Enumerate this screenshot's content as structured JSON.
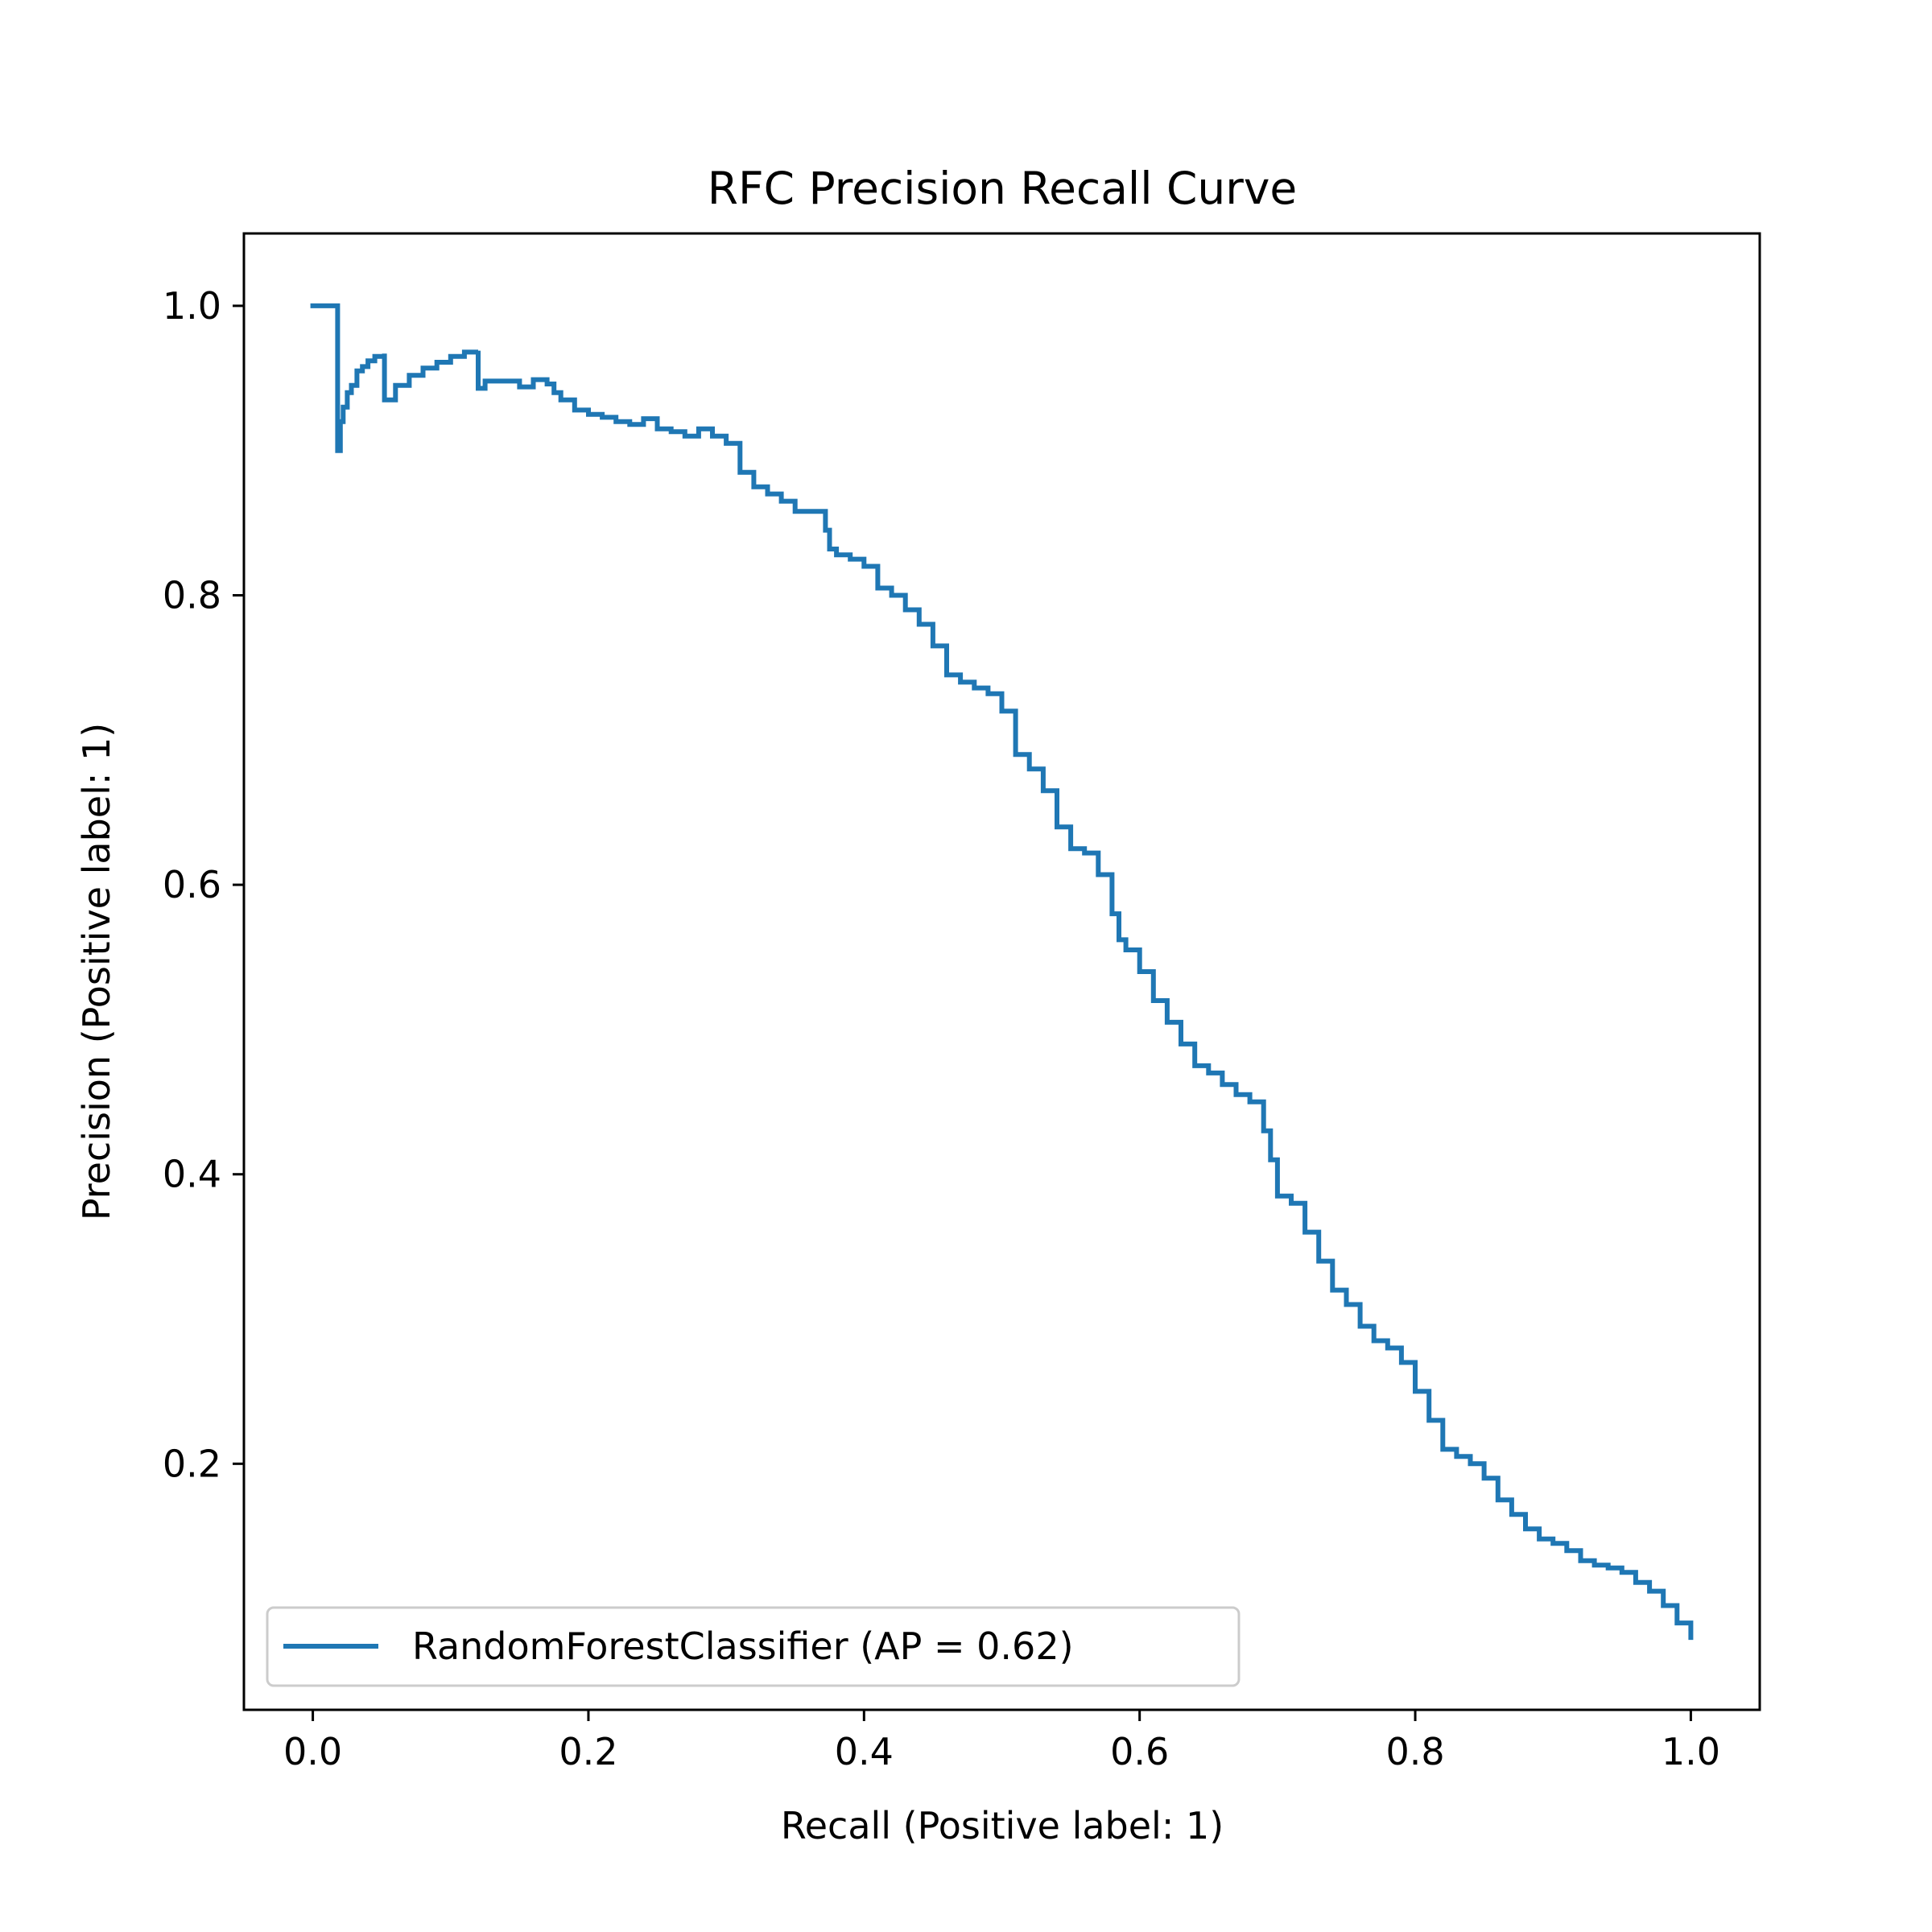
{
  "chart_data": {
    "type": "line",
    "title": "RFC Precision Recall Curve",
    "xlabel": "Recall (Positive label: 1)",
    "ylabel": "Precision (Positive label: 1)",
    "xlim": [
      -0.05,
      1.05
    ],
    "ylim": [
      0.03,
      1.05
    ],
    "xticks": [
      0.0,
      0.2,
      0.4,
      0.6,
      0.8,
      1.0
    ],
    "xtick_labels": [
      "0.0",
      "0.2",
      "0.4",
      "0.6",
      "0.8",
      "1.0"
    ],
    "yticks": [
      0.2,
      0.4,
      0.6,
      0.8,
      1.0
    ],
    "ytick_labels": [
      "0.2",
      "0.4",
      "0.6",
      "0.8",
      "1.0"
    ],
    "grid": false,
    "legend_position": "lower-left",
    "series": [
      {
        "name": "RandomForestClassifier (AP = 0.62)",
        "color": "#1f77b4",
        "drawstyle": "steps-post",
        "recall": [
          0.0,
          0.018,
          0.018,
          0.02,
          0.022,
          0.025,
          0.028,
          0.032,
          0.036,
          0.04,
          0.045,
          0.052,
          0.052,
          0.06,
          0.07,
          0.08,
          0.09,
          0.1,
          0.11,
          0.12,
          0.12,
          0.125,
          0.14,
          0.15,
          0.16,
          0.17,
          0.175,
          0.18,
          0.19,
          0.2,
          0.21,
          0.22,
          0.23,
          0.24,
          0.25,
          0.26,
          0.27,
          0.28,
          0.29,
          0.3,
          0.31,
          0.32,
          0.33,
          0.34,
          0.35,
          0.36,
          0.37,
          0.372,
          0.375,
          0.38,
          0.39,
          0.4,
          0.41,
          0.42,
          0.43,
          0.44,
          0.45,
          0.46,
          0.47,
          0.48,
          0.49,
          0.5,
          0.51,
          0.52,
          0.53,
          0.54,
          0.55,
          0.56,
          0.57,
          0.58,
          0.585,
          0.59,
          0.6,
          0.61,
          0.62,
          0.63,
          0.64,
          0.65,
          0.66,
          0.67,
          0.68,
          0.69,
          0.695,
          0.7,
          0.71,
          0.72,
          0.73,
          0.74,
          0.75,
          0.76,
          0.77,
          0.78,
          0.79,
          0.8,
          0.81,
          0.82,
          0.83,
          0.84,
          0.85,
          0.86,
          0.87,
          0.88,
          0.89,
          0.9,
          0.91,
          0.92,
          0.93,
          0.94,
          0.95,
          0.96,
          0.97,
          0.98,
          0.99,
          1.0
        ],
        "precision": [
          1.0,
          1.0,
          0.9,
          0.92,
          0.93,
          0.94,
          0.945,
          0.955,
          0.958,
          0.962,
          0.965,
          0.967,
          0.935,
          0.945,
          0.952,
          0.957,
          0.961,
          0.965,
          0.968,
          0.969,
          0.943,
          0.948,
          0.948,
          0.944,
          0.949,
          0.946,
          0.94,
          0.935,
          0.928,
          0.925,
          0.923,
          0.92,
          0.918,
          0.922,
          0.915,
          0.913,
          0.91,
          0.915,
          0.91,
          0.905,
          0.885,
          0.875,
          0.87,
          0.865,
          0.858,
          0.858,
          0.858,
          0.845,
          0.832,
          0.828,
          0.825,
          0.82,
          0.805,
          0.8,
          0.79,
          0.78,
          0.765,
          0.745,
          0.74,
          0.736,
          0.732,
          0.72,
          0.69,
          0.68,
          0.665,
          0.64,
          0.625,
          0.622,
          0.607,
          0.58,
          0.562,
          0.555,
          0.54,
          0.52,
          0.505,
          0.49,
          0.475,
          0.47,
          0.462,
          0.455,
          0.45,
          0.43,
          0.41,
          0.385,
          0.38,
          0.36,
          0.34,
          0.32,
          0.31,
          0.295,
          0.285,
          0.28,
          0.27,
          0.25,
          0.23,
          0.21,
          0.205,
          0.2,
          0.19,
          0.175,
          0.165,
          0.155,
          0.148,
          0.145,
          0.14,
          0.133,
          0.13,
          0.128,
          0.125,
          0.118,
          0.112,
          0.102,
          0.09,
          0.08
        ]
      }
    ]
  }
}
